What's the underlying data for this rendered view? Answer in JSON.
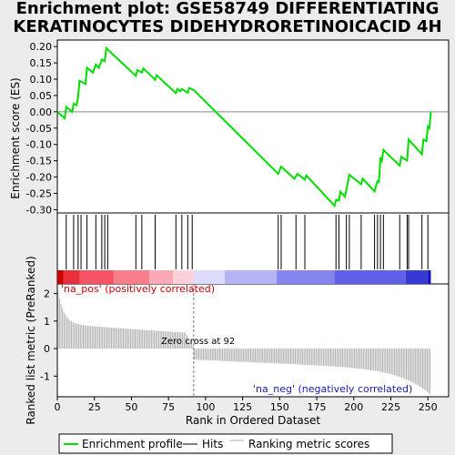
{
  "title_lines": [
    "Enrichment plot: GSE58749 DIFFERENTIATING",
    "KERATINOCYTES DIDEHYDRORETINOICACID 4H"
  ],
  "chart_data": {
    "type": "line",
    "es_panel": {
      "ylabel": "Enrichment score (ES)",
      "yticks": [
        0.2,
        0.15,
        0.1,
        0.05,
        0.0,
        -0.05,
        -0.1,
        -0.15,
        -0.2,
        -0.25,
        -0.3
      ],
      "ytick_labels": [
        "0.20",
        "0.15",
        "0.10",
        "0.05",
        "0.00",
        "-0.05",
        "-0.10",
        "-0.15",
        "-0.20",
        "-0.25",
        "-0.30"
      ],
      "ylim": [
        -0.31,
        0.22
      ],
      "es_points": [
        [
          0,
          0.0
        ],
        [
          5,
          -0.02
        ],
        [
          6,
          0.015
        ],
        [
          10,
          0.0
        ],
        [
          11,
          0.025
        ],
        [
          13,
          0.02
        ],
        [
          14,
          0.045
        ],
        [
          15,
          0.095
        ],
        [
          19,
          0.085
        ],
        [
          20,
          0.135
        ],
        [
          24,
          0.12
        ],
        [
          26,
          0.145
        ],
        [
          28,
          0.135
        ],
        [
          30,
          0.16
        ],
        [
          32,
          0.155
        ],
        [
          33,
          0.195
        ],
        [
          53,
          0.11
        ],
        [
          54,
          0.128
        ],
        [
          57,
          0.12
        ],
        [
          58,
          0.133
        ],
        [
          66,
          0.098
        ],
        [
          67,
          0.112
        ],
        [
          80,
          0.057
        ],
        [
          81,
          0.07
        ],
        [
          83,
          0.063
        ],
        [
          84,
          0.07
        ],
        [
          88,
          0.058
        ],
        [
          89,
          0.073
        ],
        [
          92,
          0.067
        ],
        [
          149,
          -0.19
        ],
        [
          151,
          -0.168
        ],
        [
          160,
          -0.205
        ],
        [
          162,
          -0.19
        ],
        [
          167,
          -0.208
        ],
        [
          168,
          -0.195
        ],
        [
          187,
          -0.288
        ],
        [
          188,
          -0.27
        ],
        [
          190,
          -0.272
        ],
        [
          191,
          -0.245
        ],
        [
          194,
          -0.26
        ],
        [
          195,
          -0.24
        ],
        [
          197,
          -0.193
        ],
        [
          205,
          -0.222
        ],
        [
          206,
          -0.205
        ],
        [
          214,
          -0.244
        ],
        [
          216,
          -0.212
        ],
        [
          217,
          -0.215
        ],
        [
          218,
          -0.14
        ],
        [
          219,
          -0.15
        ],
        [
          220,
          -0.117
        ],
        [
          231,
          -0.165
        ],
        [
          232,
          -0.138
        ],
        [
          236,
          -0.15
        ],
        [
          237,
          -0.085
        ],
        [
          246,
          -0.13
        ],
        [
          247,
          -0.085
        ],
        [
          249,
          -0.09
        ],
        [
          250,
          -0.045
        ],
        [
          251,
          -0.05
        ],
        [
          252,
          0.0
        ]
      ]
    },
    "hits_panel": {
      "label": "Hits",
      "hit_ranks": [
        6,
        11,
        14,
        16,
        20,
        26,
        30,
        32,
        34,
        53,
        57,
        66,
        80,
        84,
        88,
        91,
        149,
        151,
        161,
        167,
        188,
        190,
        195,
        197,
        205,
        214,
        216,
        218,
        220,
        231,
        236,
        237,
        246,
        250
      ]
    },
    "color_bar": {
      "colors": [
        "#cc0000",
        "#e8303a",
        "#f55466",
        "#f87f8a",
        "#fbaab5",
        "#fdd0db",
        "#dcdcfa",
        "#b4b4f5",
        "#8585f0",
        "#6060e6",
        "#3838d4",
        "#1010bb"
      ],
      "stops": [
        0,
        4,
        15,
        38,
        62,
        78,
        92,
        113,
        148,
        187,
        235,
        250,
        252
      ]
    },
    "metric_panel": {
      "ylabel": "Ranked list metric (PreRanked)",
      "yticks": [
        2,
        1,
        0,
        -1
      ],
      "ytick_labels": [
        "2",
        "1",
        "0",
        "-1"
      ],
      "ylim": [
        -1.75,
        2.35
      ],
      "pos_label": "'na_pos' (positively correlated)",
      "neg_label": "'na_neg' (negatively correlated)",
      "zero_cross_label": "Zero cross at 92",
      "zero_cross_rank": 92
    },
    "x_axis": {
      "xlabel": "Rank in Ordered Dataset",
      "xticks": [
        0,
        25,
        50,
        75,
        100,
        125,
        150,
        175,
        200,
        225,
        250
      ],
      "xlim": [
        0,
        264
      ],
      "n": 252
    },
    "legend": [
      {
        "name": "Enrichment profile",
        "color": "#00dd00"
      },
      {
        "name": "Hits",
        "color": "#000000"
      },
      {
        "name": "Ranking metric scores",
        "color": "#b0b0b0"
      }
    ],
    "colors": {
      "es_line": "#00dd00",
      "hit": "#000000",
      "metric": "#b0b0b0",
      "pos_text": "#cc0000",
      "neg_text": "#1a1ab4"
    }
  }
}
